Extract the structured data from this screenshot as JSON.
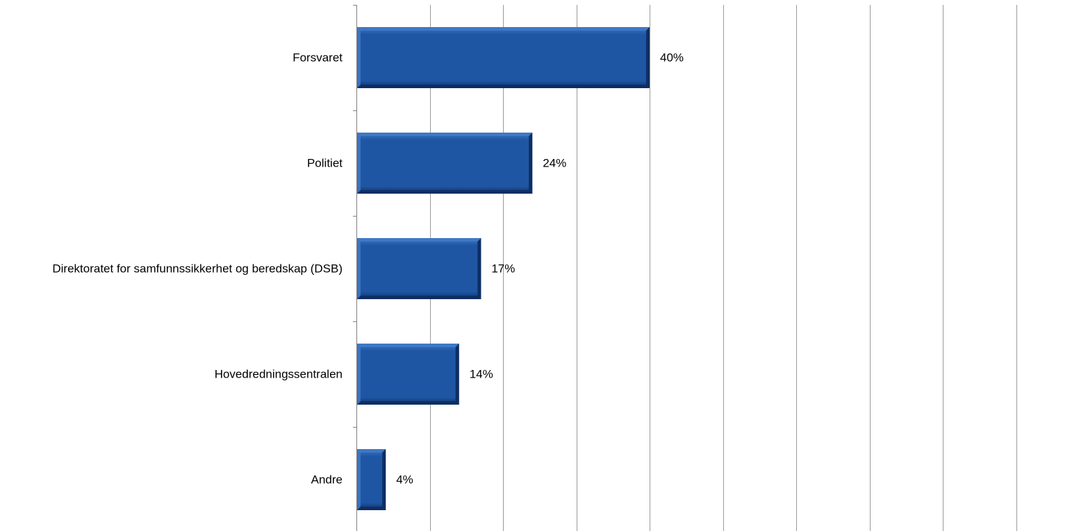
{
  "chart_data": {
    "type": "bar",
    "orientation": "horizontal",
    "title": "",
    "xlabel": "",
    "ylabel": "",
    "categories": [
      "Forsvaret",
      "Politiet",
      "Direktoratet for samfunnssikkerhet og beredskap (DSB)",
      "Hovedredningssentralen",
      "Andre"
    ],
    "values": [
      40,
      24,
      17,
      14,
      4
    ],
    "data_labels": [
      "40%",
      "24%",
      "17%",
      "14%",
      "4%"
    ],
    "xlim": [
      0,
      90
    ],
    "x_gridline_step": 10,
    "grid": true,
    "legend": "none",
    "bar_style": "bevel",
    "colors": {
      "bar": "#1F56A3",
      "bar_light": "#3F78C6",
      "bar_dark": "#0E2E63",
      "grid": "#9a9a9a",
      "axis": "#7f7f7f"
    }
  }
}
